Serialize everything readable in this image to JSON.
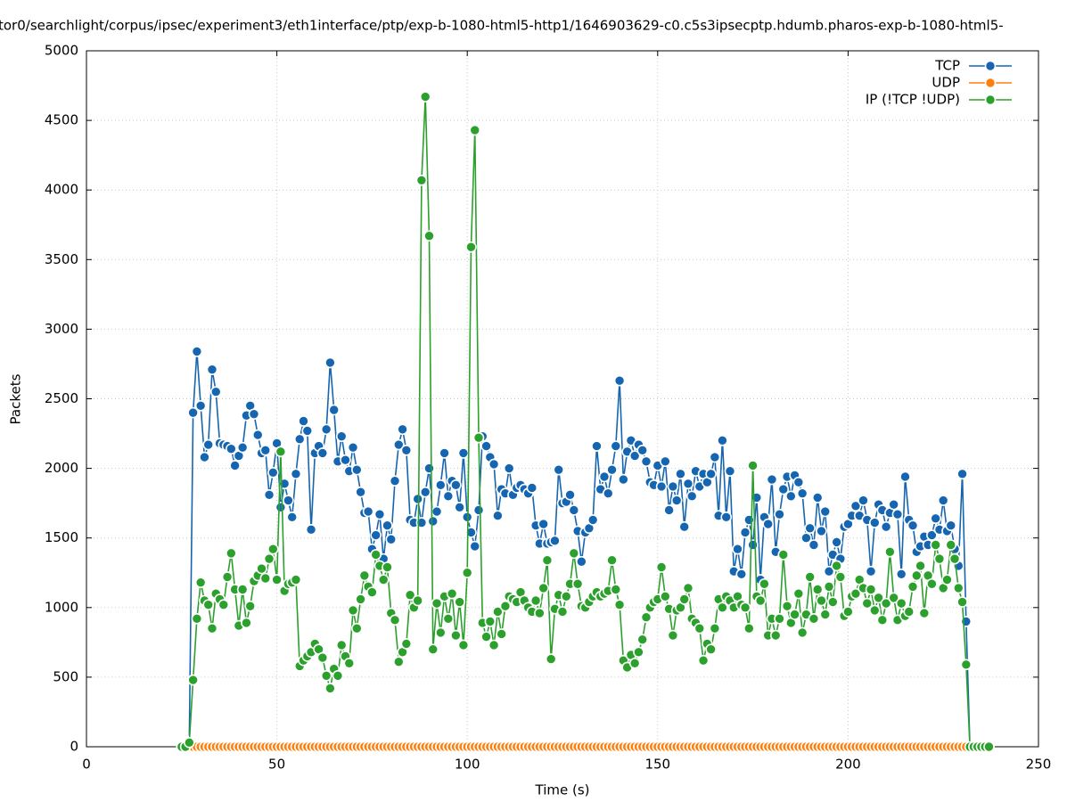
{
  "chart_data": {
    "type": "line",
    "title": "tor0/searchlight/corpus/ipsec/experiment3/eth1interface/ptp/exp-b-1080-html5-http1/1646903629-c0.c5s3ipsecptp.hdumb.pharos-exp-b-1080-html5-",
    "x_label": "Time (s)",
    "y_label": "Packets",
    "xlim": [
      0,
      250
    ],
    "xticks": [
      0,
      50,
      100,
      150,
      200,
      250
    ],
    "ylim": [
      0,
      5000
    ],
    "yticks": [
      0,
      500,
      1000,
      1500,
      2000,
      2500,
      3000,
      3500,
      4000,
      4500,
      5000
    ],
    "grid": true,
    "legend": "top-right",
    "x": [
      25,
      26,
      27,
      28,
      29,
      30,
      31,
      32,
      33,
      34,
      35,
      36,
      37,
      38,
      39,
      40,
      41,
      42,
      43,
      44,
      45,
      46,
      47,
      48,
      49,
      50,
      51,
      52,
      53,
      54,
      55,
      56,
      57,
      58,
      59,
      60,
      61,
      62,
      63,
      64,
      65,
      66,
      67,
      68,
      69,
      70,
      71,
      72,
      73,
      74,
      75,
      76,
      77,
      78,
      79,
      80,
      81,
      82,
      83,
      84,
      85,
      86,
      87,
      88,
      89,
      90,
      91,
      92,
      93,
      94,
      95,
      96,
      97,
      98,
      99,
      100,
      101,
      102,
      103,
      104,
      105,
      106,
      107,
      108,
      109,
      110,
      111,
      112,
      113,
      114,
      115,
      116,
      117,
      118,
      119,
      120,
      121,
      122,
      123,
      124,
      125,
      126,
      127,
      128,
      129,
      130,
      131,
      132,
      133,
      134,
      135,
      136,
      137,
      138,
      139,
      140,
      141,
      142,
      143,
      144,
      145,
      146,
      147,
      148,
      149,
      150,
      151,
      152,
      153,
      154,
      155,
      156,
      157,
      158,
      159,
      160,
      161,
      162,
      163,
      164,
      165,
      166,
      167,
      168,
      169,
      170,
      171,
      172,
      173,
      174,
      175,
      176,
      177,
      178,
      179,
      180,
      181,
      182,
      183,
      184,
      185,
      186,
      187,
      188,
      189,
      190,
      191,
      192,
      193,
      194,
      195,
      196,
      197,
      198,
      199,
      200,
      201,
      202,
      203,
      204,
      205,
      206,
      207,
      208,
      209,
      210,
      211,
      212,
      213,
      214,
      215,
      216,
      217,
      218,
      219,
      220,
      221,
      222,
      223,
      224,
      225,
      226,
      227,
      228,
      229,
      230,
      231,
      232,
      233,
      234,
      235,
      236,
      237
    ],
    "series": [
      {
        "name": "TCP",
        "color": "#1565b0",
        "values": [
          0,
          0,
          40,
          2400,
          2840,
          2450,
          2080,
          2170,
          2710,
          2550,
          2180,
          2170,
          2160,
          2140,
          2020,
          2090,
          2150,
          2380,
          2450,
          2390,
          2240,
          2110,
          2130,
          1810,
          1970,
          2180,
          1720,
          1890,
          1770,
          1650,
          1960,
          2210,
          2340,
          2270,
          1560,
          2110,
          2160,
          2110,
          2280,
          2760,
          2420,
          2050,
          2230,
          2060,
          1980,
          2150,
          1990,
          1830,
          1680,
          1690,
          1420,
          1520,
          1670,
          1350,
          1590,
          1490,
          1910,
          2170,
          2280,
          2130,
          1630,
          1610,
          1780,
          1610,
          1830,
          2000,
          1620,
          1690,
          1880,
          2110,
          1800,
          1910,
          1880,
          1720,
          2110,
          1650,
          1540,
          1440,
          1700,
          2230,
          2160,
          2080,
          2030,
          1660,
          1850,
          1820,
          2000,
          1810,
          1860,
          1880,
          1850,
          1820,
          1860,
          1590,
          1460,
          1600,
          1460,
          1470,
          1480,
          1990,
          1750,
          1760,
          1810,
          1700,
          1550,
          1330,
          1540,
          1570,
          1630,
          2160,
          1850,
          1940,
          1820,
          1990,
          2160,
          2630,
          1920,
          2120,
          2200,
          2090,
          2170,
          2130,
          2050,
          1900,
          1880,
          2020,
          1870,
          2050,
          1700,
          1870,
          1770,
          1960,
          1580,
          1890,
          1800,
          1980,
          1870,
          1960,
          1900,
          1960,
          2080,
          1660,
          2200,
          1650,
          1980,
          1260,
          1420,
          1240,
          1540,
          1630,
          1450,
          1790,
          1200,
          1650,
          1600,
          1920,
          1400,
          1670,
          1850,
          1940,
          1800,
          1950,
          1900,
          1820,
          1500,
          1570,
          1450,
          1790,
          1550,
          1690,
          1260,
          1380,
          1470,
          1350,
          1580,
          1600,
          1660,
          1730,
          1660,
          1770,
          1630,
          1260,
          1610,
          1740,
          1700,
          1580,
          1680,
          1740,
          1670,
          1240,
          1940,
          1630,
          1590,
          1400,
          1440,
          1510,
          1450,
          1520,
          1640,
          1560,
          1770,
          1550,
          1590,
          1420,
          1300,
          1960,
          900,
          0,
          0,
          0,
          0,
          0,
          0
        ]
      },
      {
        "name": "UDP",
        "color": "#ff7f0e",
        "values": [
          0,
          0,
          0,
          0,
          0,
          0,
          0,
          0,
          0,
          0,
          0,
          0,
          0,
          0,
          0,
          0,
          0,
          0,
          0,
          0,
          0,
          0,
          0,
          0,
          0,
          0,
          0,
          0,
          0,
          0,
          0,
          0,
          0,
          0,
          0,
          0,
          0,
          0,
          0,
          0,
          0,
          0,
          0,
          0,
          0,
          0,
          0,
          0,
          0,
          0,
          0,
          0,
          0,
          0,
          0,
          0,
          0,
          0,
          0,
          0,
          0,
          0,
          0,
          0,
          0,
          0,
          0,
          0,
          0,
          0,
          0,
          0,
          0,
          0,
          0,
          0,
          0,
          0,
          0,
          0,
          0,
          0,
          0,
          0,
          0,
          0,
          0,
          0,
          0,
          0,
          0,
          0,
          0,
          0,
          0,
          0,
          0,
          0,
          0,
          0,
          0,
          0,
          0,
          0,
          0,
          0,
          0,
          0,
          0,
          0,
          0,
          0,
          0,
          0,
          0,
          0,
          0,
          0,
          0,
          0,
          0,
          0,
          0,
          0,
          0,
          0,
          0,
          0,
          0,
          0,
          0,
          0,
          0,
          0,
          0,
          0,
          0,
          0,
          0,
          0,
          0,
          0,
          0,
          0,
          0,
          0,
          0,
          0,
          0,
          0,
          0,
          0,
          0,
          0,
          0,
          0,
          0,
          0,
          0,
          0,
          0,
          0,
          0,
          0,
          0,
          0,
          0,
          0,
          0,
          0,
          0,
          0,
          0,
          0,
          0,
          0,
          0,
          0,
          0,
          0,
          0,
          0,
          0,
          0,
          0,
          0,
          0,
          0,
          0,
          0,
          0,
          0,
          0,
          0,
          0,
          0,
          0,
          0,
          0,
          0,
          0,
          0,
          0,
          0,
          0,
          0,
          0,
          0,
          0,
          0,
          0,
          0,
          0
        ]
      },
      {
        "name": "IP (!TCP  !UDP)",
        "color": "#2ca02c",
        "values": [
          0,
          0,
          30,
          480,
          920,
          1180,
          1050,
          1020,
          850,
          1100,
          1060,
          1020,
          1220,
          1390,
          1130,
          870,
          1130,
          890,
          1010,
          1190,
          1230,
          1280,
          1210,
          1350,
          1420,
          1200,
          2120,
          1120,
          1170,
          1180,
          1200,
          580,
          620,
          650,
          680,
          740,
          700,
          640,
          510,
          420,
          560,
          510,
          730,
          650,
          600,
          980,
          850,
          1060,
          1230,
          1150,
          1110,
          1380,
          1300,
          1200,
          1290,
          960,
          910,
          610,
          680,
          740,
          1090,
          1000,
          1050,
          4070,
          4670,
          3670,
          700,
          1030,
          820,
          1080,
          920,
          1100,
          800,
          1040,
          730,
          1250,
          3590,
          4430,
          2220,
          890,
          790,
          900,
          730,
          970,
          810,
          1010,
          1080,
          1060,
          1040,
          1110,
          1050,
          1000,
          970,
          1050,
          960,
          1140,
          1340,
          630,
          990,
          1090,
          970,
          1080,
          1170,
          1390,
          1170,
          1010,
          1000,
          1040,
          1080,
          1110,
          1080,
          1100,
          1120,
          1340,
          1130,
          1020,
          620,
          570,
          660,
          600,
          680,
          770,
          930,
          1000,
          1040,
          1060,
          1290,
          1080,
          990,
          800,
          980,
          1000,
          1060,
          1140,
          920,
          890,
          850,
          620,
          740,
          700,
          850,
          1060,
          1000,
          1080,
          1050,
          1000,
          1080,
          1020,
          1000,
          850,
          2020,
          1080,
          1050,
          1170,
          800,
          920,
          800,
          920,
          1380,
          1010,
          890,
          950,
          1100,
          820,
          950,
          1220,
          920,
          1130,
          1050,
          950,
          1150,
          1040,
          1300,
          1220,
          940,
          970,
          1080,
          1100,
          1200,
          1140,
          1030,
          1130,
          980,
          1070,
          910,
          1030,
          1400,
          1070,
          910,
          1030,
          940,
          970,
          1150,
          1230,
          1300,
          960,
          1230,
          1170,
          1450,
          1350,
          1140,
          1200,
          1450,
          1350,
          1140,
          1040,
          590,
          0,
          0,
          0,
          0,
          0,
          0
        ]
      }
    ]
  }
}
